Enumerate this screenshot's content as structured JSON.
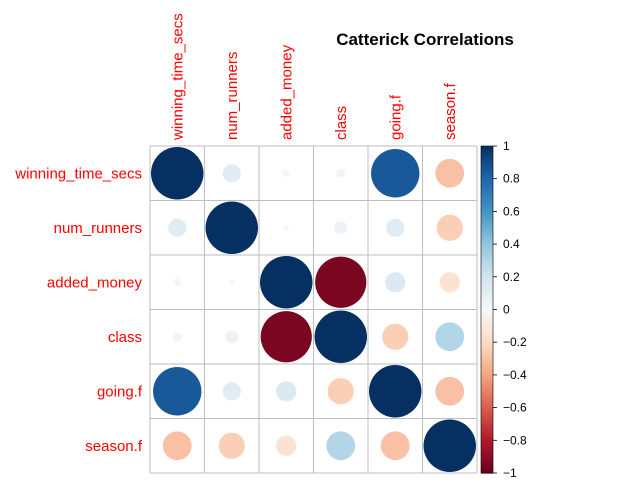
{
  "chart_data": {
    "type": "heatmap",
    "subtype": "correlation-circles",
    "title": "Catterick Correlations",
    "variables": [
      "winning_time_secs",
      "num_runners",
      "added_money",
      "class",
      "going.f",
      "season.f"
    ],
    "matrix": [
      [
        1.0,
        0.12,
        0.02,
        -0.03,
        0.85,
        -0.3
      ],
      [
        0.12,
        1.0,
        0.01,
        0.06,
        0.12,
        -0.25
      ],
      [
        0.02,
        0.01,
        1.0,
        -0.95,
        0.15,
        -0.15
      ],
      [
        -0.03,
        0.06,
        -0.95,
        1.0,
        -0.25,
        0.3
      ],
      [
        0.85,
        0.12,
        0.15,
        -0.25,
        1.0,
        -0.3
      ],
      [
        -0.3,
        -0.25,
        -0.15,
        0.3,
        -0.3,
        1.0
      ]
    ],
    "colorbar": {
      "min": -1,
      "max": 1,
      "ticks": [
        "1",
        "0.8",
        "0.6",
        "0.4",
        "0.2",
        "0",
        "−0.2",
        "−0.4",
        "−0.6",
        "−0.8",
        "−1"
      ]
    },
    "colors": {
      "label": "#ff0000",
      "negative_end": "#67001f",
      "positive_end": "#053061",
      "grid": "#bebebe"
    },
    "grid": true
  }
}
